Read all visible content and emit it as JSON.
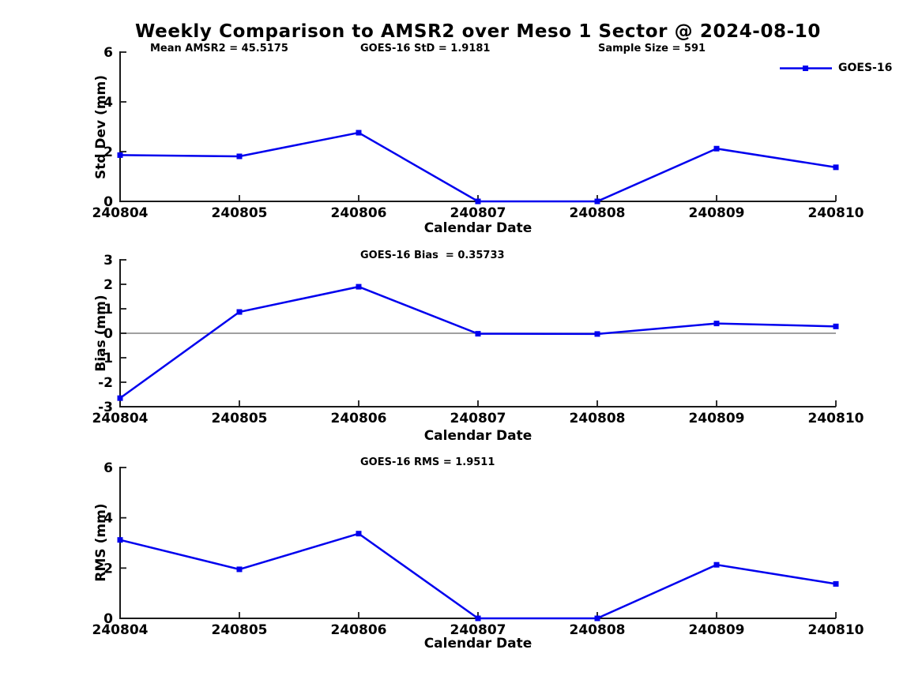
{
  "title": "Weekly Comparison to AMSR2 over Meso 1 Sector @ 2024-08-10",
  "legend": {
    "label": "GOES-16"
  },
  "colors": {
    "line": "#0000ee",
    "zero_line": "#808080",
    "axis": "#1a1a1a"
  },
  "chart_data": [
    {
      "type": "line",
      "annotations": [
        {
          "text": "Mean AMSR2 = 45.5175"
        },
        {
          "text": "GOES-16 StD = 1.9181"
        },
        {
          "text": "Sample Size = 591"
        }
      ],
      "categories": [
        "240804",
        "240805",
        "240806",
        "240807",
        "240808",
        "240809",
        "240810"
      ],
      "series": [
        {
          "name": "GOES-16",
          "values": [
            1.86,
            1.81,
            2.76,
            0.0,
            0.0,
            2.12,
            1.37
          ]
        }
      ],
      "xlabel": "Calendar Date",
      "ylabel": "Std Dev (mm)",
      "ylim": [
        0,
        6
      ],
      "yticks": [
        0,
        2,
        4,
        6
      ],
      "zero_line": false,
      "grid": false,
      "legend_position": "top-right"
    },
    {
      "type": "line",
      "annotations": [
        {
          "text": "GOES-16 Bias  = 0.35733"
        }
      ],
      "categories": [
        "240804",
        "240805",
        "240806",
        "240807",
        "240808",
        "240809",
        "240810"
      ],
      "series": [
        {
          "name": "GOES-16",
          "values": [
            -2.65,
            0.87,
            1.9,
            -0.02,
            -0.03,
            0.4,
            0.28
          ]
        }
      ],
      "xlabel": "Calendar Date",
      "ylabel": "Bias (mm)",
      "ylim": [
        -3,
        3
      ],
      "yticks": [
        3,
        2,
        1,
        0,
        -1,
        -2,
        -3
      ],
      "zero_line": true,
      "grid": false
    },
    {
      "type": "line",
      "annotations": [
        {
          "text": "GOES-16 RMS = 1.9511"
        }
      ],
      "categories": [
        "240804",
        "240805",
        "240806",
        "240807",
        "240808",
        "240809",
        "240810"
      ],
      "series": [
        {
          "name": "GOES-16",
          "values": [
            3.12,
            1.95,
            3.37,
            0.0,
            0.0,
            2.13,
            1.37
          ]
        }
      ],
      "xlabel": "Calendar Date",
      "ylabel": "RMS (mm)",
      "ylim": [
        0,
        6
      ],
      "yticks": [
        0,
        2,
        4,
        6
      ],
      "zero_line": false,
      "grid": false
    }
  ]
}
